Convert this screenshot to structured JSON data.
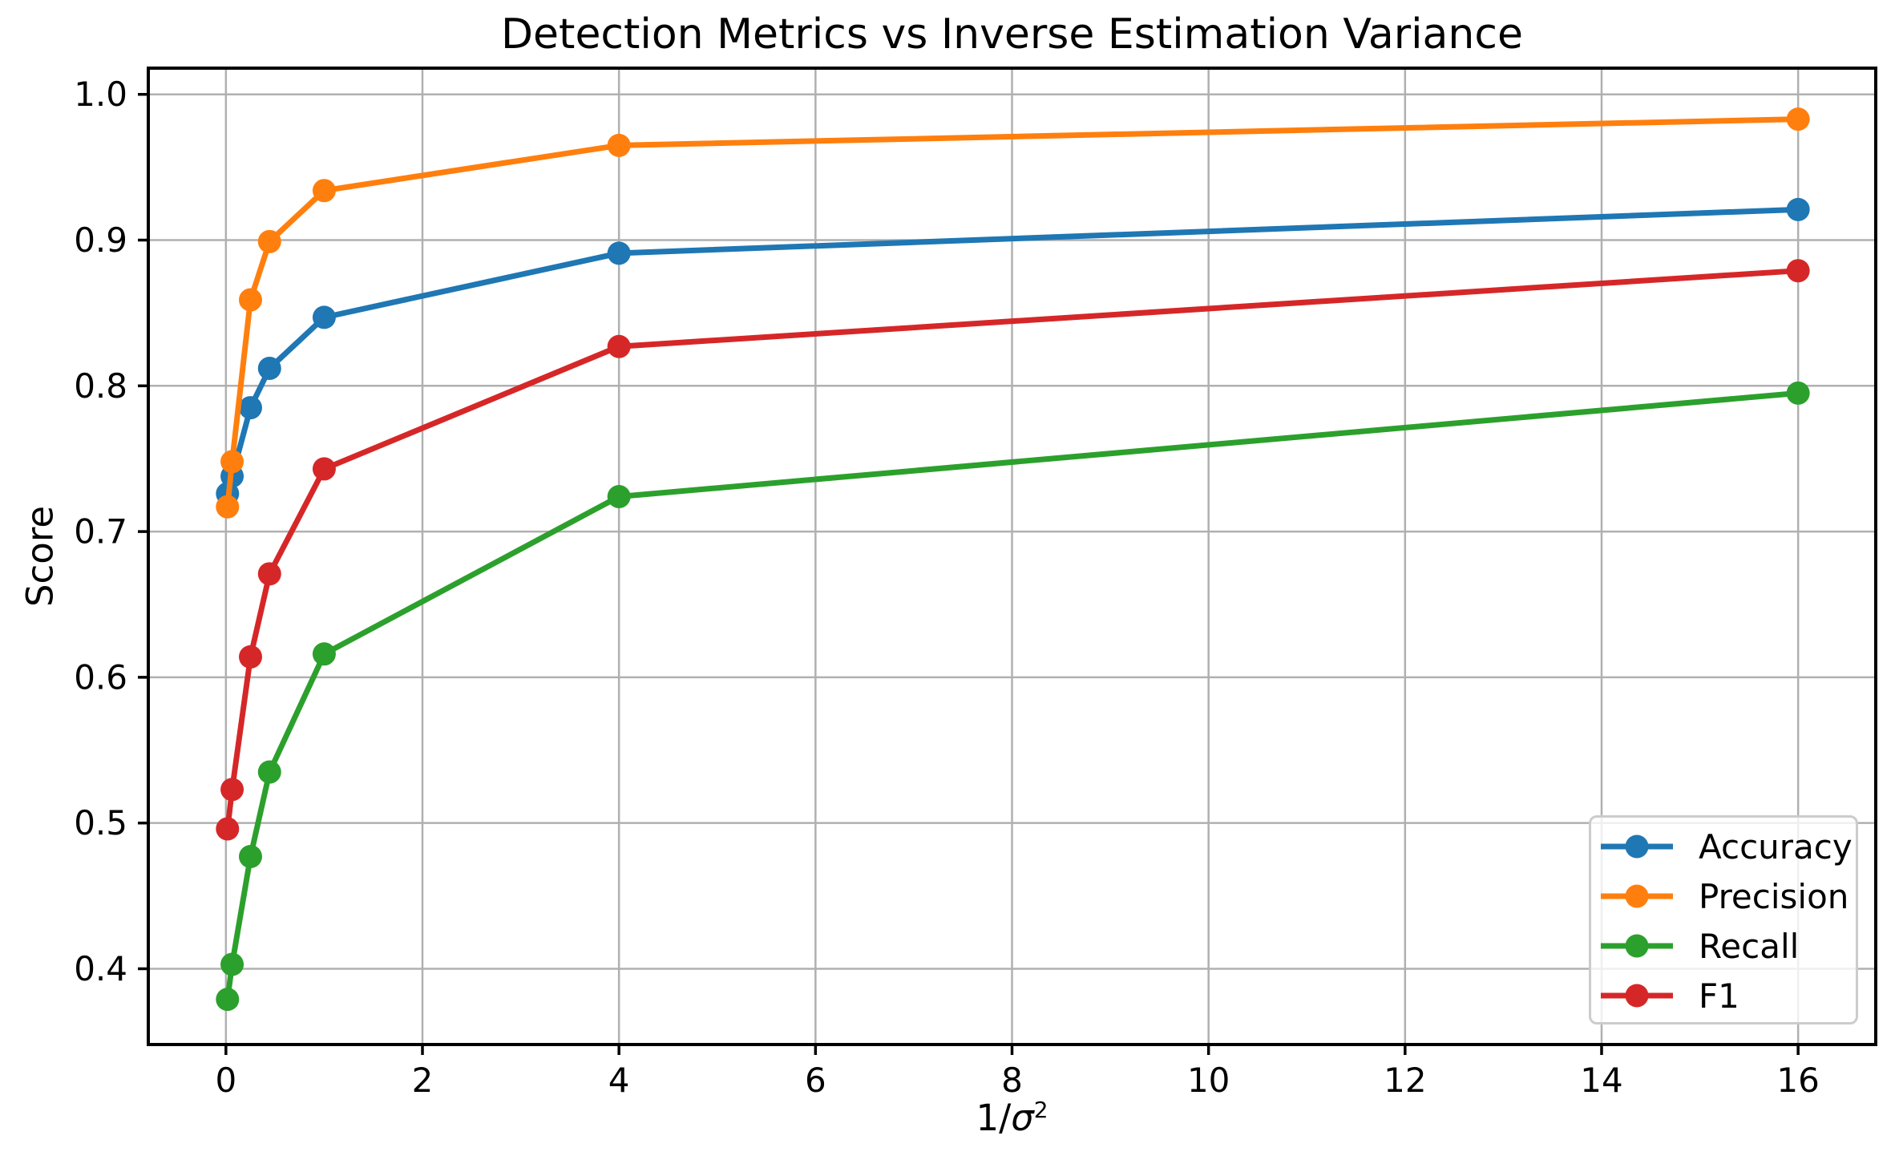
{
  "chart_data": {
    "type": "line",
    "title": "Detection Metrics vs Inverse Estimation Variance",
    "xlabel": "1/σ²",
    "ylabel": "Score",
    "x": [
      0.016,
      0.063,
      0.25,
      0.444,
      1,
      4,
      16
    ],
    "series": [
      {
        "name": "Accuracy",
        "color": "#1f77b4",
        "values": [
          0.726,
          0.738,
          0.785,
          0.812,
          0.847,
          0.891,
          0.921
        ]
      },
      {
        "name": "Precision",
        "color": "#ff7f0e",
        "values": [
          0.717,
          0.748,
          0.859,
          0.899,
          0.934,
          0.965,
          0.983
        ]
      },
      {
        "name": "Recall",
        "color": "#2ca02c",
        "values": [
          0.379,
          0.403,
          0.477,
          0.535,
          0.616,
          0.724,
          0.795
        ]
      },
      {
        "name": "F1",
        "color": "#d62728",
        "values": [
          0.496,
          0.523,
          0.614,
          0.671,
          0.743,
          0.827,
          0.879
        ]
      }
    ],
    "x_ticks": [
      0,
      2,
      4,
      6,
      8,
      10,
      12,
      14,
      16
    ],
    "x_tick_labels": [
      "0",
      "2",
      "4",
      "6",
      "8",
      "10",
      "12",
      "14",
      "16"
    ],
    "y_ticks": [
      0.4,
      0.5,
      0.6,
      0.7,
      0.8,
      0.9,
      1.0
    ],
    "y_tick_labels": [
      "0.4",
      "0.5",
      "0.6",
      "0.7",
      "0.8",
      "0.9",
      "1.0"
    ],
    "xlim": [
      -0.79,
      16.79
    ],
    "ylim": [
      0.348,
      1.018
    ],
    "grid": true,
    "grid_color": "#b0b0b0",
    "axis_color": "#000000",
    "legend_position": "lower right",
    "legend_entries": [
      "Accuracy",
      "Precision",
      "Recall",
      "F1"
    ]
  }
}
